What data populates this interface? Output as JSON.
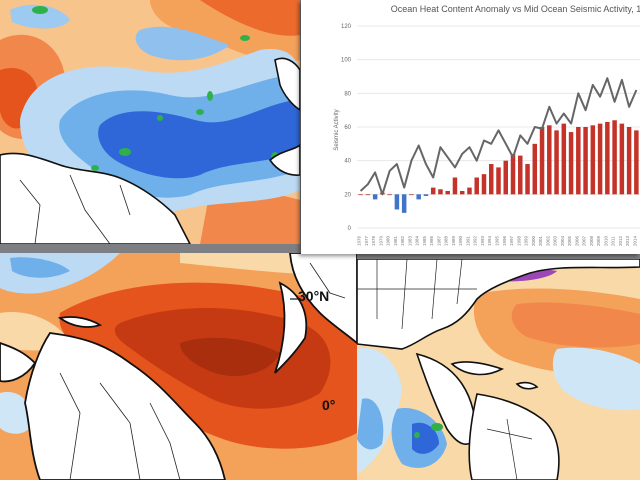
{
  "maps": {
    "bottom_left": {
      "lat_label_30n": "30°N",
      "lat_label_0": "0°"
    }
  },
  "colors": {
    "warm_light": "#f9d9a8",
    "warm_mid": "#f4a15a",
    "warm_deep": "#e5541c",
    "warm_dark": "#c53a12",
    "cool_light": "#cfe6f7",
    "cool_mid": "#6fb0ea",
    "cool_deep": "#2f67d8",
    "green": "#2fb04a",
    "purple": "#9b47b5",
    "coastline": "#111111",
    "land": "#ffffff"
  },
  "chart_data": {
    "type": "bar",
    "title": "Ocean Heat Content Anomaly vs Mid Ocean Seismic Activity, 1",
    "ylabel": "Seismic Activity",
    "ylim": [
      0,
      120
    ],
    "yticks": [
      0,
      20,
      40,
      60,
      80,
      100,
      120
    ],
    "categories": [
      "1976",
      "1977",
      "1978",
      "1979",
      "1980",
      "1981",
      "1982",
      "1983",
      "1984",
      "1985",
      "1986",
      "1987",
      "1988",
      "1989",
      "1990",
      "1991",
      "1992",
      "1993",
      "1994",
      "1995",
      "1996",
      "1997",
      "1998",
      "1999",
      "2000",
      "2001",
      "2002",
      "2003",
      "2004",
      "2005",
      "2006",
      "2007",
      "2008",
      "2009",
      "2010",
      "2011",
      "2012",
      "2013",
      "2014"
    ],
    "series": [
      {
        "kind": "bar",
        "values": [
          20,
          20,
          17,
          21,
          20,
          11,
          9,
          20,
          17,
          19,
          24,
          23,
          22,
          30,
          22,
          24,
          30,
          32,
          38,
          36,
          40,
          44,
          43,
          38,
          50,
          60,
          61,
          58,
          62,
          57,
          60,
          60,
          61,
          62,
          63,
          64,
          62,
          60,
          58
        ],
        "baseline": 20
      },
      {
        "kind": "line",
        "values": [
          22,
          26,
          33,
          20,
          34,
          38,
          24,
          40,
          49,
          38,
          30,
          48,
          42,
          36,
          44,
          48,
          40,
          52,
          50,
          58,
          50,
          42,
          55,
          50,
          60,
          59,
          72,
          62,
          68,
          62,
          80,
          70,
          85,
          78,
          89,
          75,
          88,
          72,
          82
        ]
      }
    ],
    "bar_colors": {
      "positive": "#c4332a",
      "negative": "#3f74c9"
    },
    "line_color": "#666666",
    "grid": true,
    "legend": "none"
  }
}
